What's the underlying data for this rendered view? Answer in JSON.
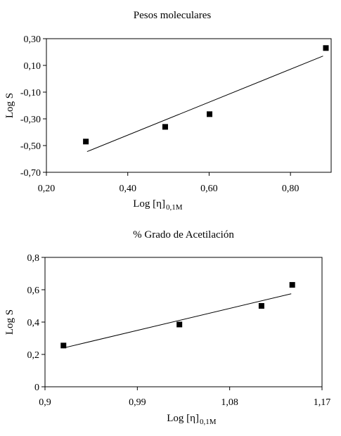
{
  "chart_data": [
    {
      "type": "scatter",
      "title": "Pesos moleculares",
      "xlabel": "Log [η]",
      "xlabel_sub": "0,1M",
      "ylabel": "Log S",
      "xlim": [
        0.2,
        0.9
      ],
      "ylim": [
        -0.7,
        0.3
      ],
      "xticks": [
        0.2,
        0.4,
        0.6,
        0.8
      ],
      "xtick_labels": [
        "0,20",
        "0,40",
        "0,60",
        "0,80"
      ],
      "yticks": [
        0.3,
        0.1,
        -0.1,
        -0.3,
        -0.5,
        -0.7
      ],
      "ytick_labels": [
        "0,30",
        "0,10",
        "-0,10",
        "-0,30",
        "-0,50",
        "-0,70"
      ],
      "grid": false,
      "points": [
        {
          "x": 0.297,
          "y": -0.47
        },
        {
          "x": 0.492,
          "y": -0.36
        },
        {
          "x": 0.601,
          "y": -0.265
        },
        {
          "x": 0.887,
          "y": 0.23
        }
      ],
      "trendline": {
        "x": [
          0.3,
          0.88
        ],
        "y": [
          -0.545,
          0.17
        ]
      }
    },
    {
      "type": "scatter",
      "title": "% Grado de Acetilación",
      "xlabel": "Log [η]",
      "xlabel_sub": "0,1M",
      "ylabel": "Log S",
      "xlim": [
        0.9,
        1.17
      ],
      "ylim": [
        0,
        0.8
      ],
      "xticks": [
        0.9,
        0.99,
        1.08,
        1.17
      ],
      "xtick_labels": [
        "0,9",
        "0,99",
        "1,08",
        "1,17"
      ],
      "yticks": [
        0.8,
        0.6,
        0.4,
        0.2,
        0
      ],
      "ytick_labels": [
        "0,8",
        "0,6",
        "0,4",
        "0,2",
        "0"
      ],
      "grid": false,
      "points": [
        {
          "x": 0.918,
          "y": 0.255
        },
        {
          "x": 1.031,
          "y": 0.385
        },
        {
          "x": 1.111,
          "y": 0.5
        },
        {
          "x": 1.141,
          "y": 0.63
        }
      ],
      "trendline": {
        "x": [
          0.918,
          1.14
        ],
        "y": [
          0.24,
          0.575
        ]
      }
    }
  ]
}
